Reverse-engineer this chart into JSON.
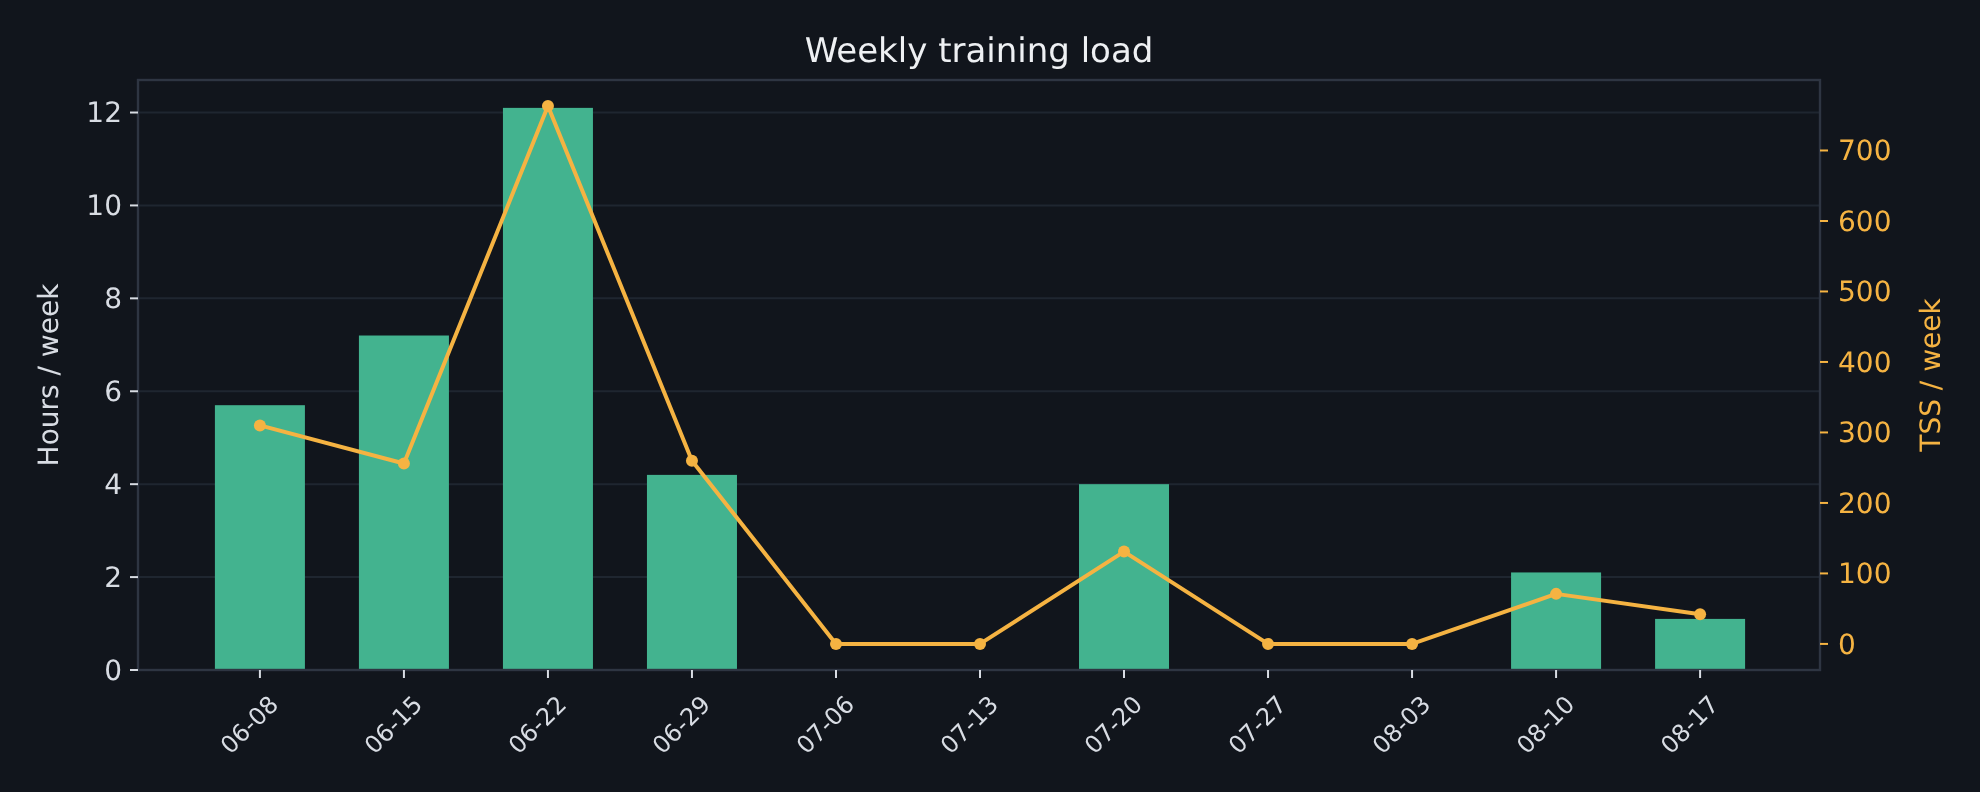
{
  "chart_data": {
    "type": "bar",
    "title": "Weekly training load",
    "ylabel": "Hours / week",
    "y2label": "TSS / week",
    "categories": [
      "06-08",
      "06-15",
      "06-22",
      "06-29",
      "07-06",
      "07-13",
      "07-20",
      "07-27",
      "08-03",
      "08-10",
      "08-17"
    ],
    "series": [
      {
        "color": "#43b38f",
        "values": [
          5.7,
          7.2,
          12.1,
          4.2,
          0,
          0,
          4.0,
          0,
          0,
          2.1,
          1.1
        ]
      },
      {
        "type": "line",
        "axis": "y2",
        "color": "#f5b342",
        "marker": "circle",
        "values": [
          310,
          256,
          763,
          260,
          0,
          0,
          131,
          0,
          0,
          71,
          42
        ]
      }
    ],
    "ylim": [
      0,
      12.7
    ],
    "yticks": [
      0,
      2,
      4,
      6,
      8,
      10,
      12
    ],
    "y2lim": [
      -37,
      800
    ],
    "y2ticks": [
      0,
      100,
      200,
      300,
      400,
      500,
      600,
      700
    ],
    "grid": "y"
  }
}
